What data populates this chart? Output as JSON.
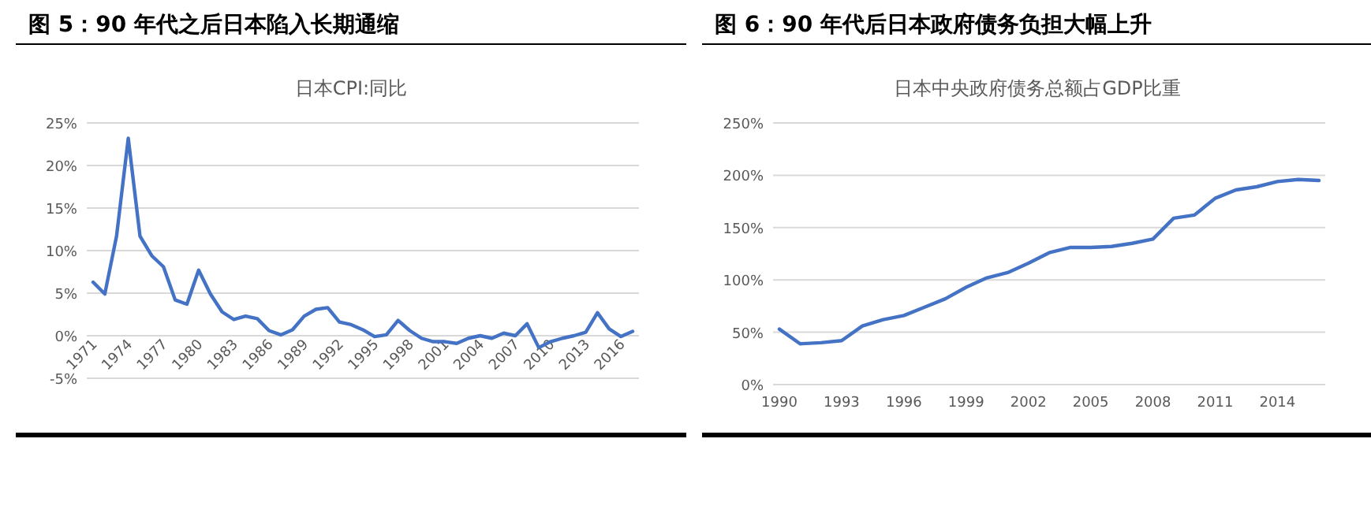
{
  "chart_data": [
    {
      "type": "line",
      "title": "图 5：90 年代之后日本陷入长期通缩",
      "subtitle": "日本CPI:同比",
      "categories": [
        "1971",
        null,
        null,
        "1974",
        null,
        null,
        "1977",
        null,
        null,
        "1980",
        null,
        null,
        "1983",
        null,
        null,
        "1986",
        null,
        null,
        "1989",
        null,
        null,
        "1992",
        null,
        null,
        "1995",
        null,
        null,
        "1998",
        null,
        null,
        "2001",
        null,
        null,
        "2004",
        null,
        null,
        "2007",
        null,
        null,
        "2010",
        null,
        null,
        "2013",
        null,
        null,
        "2016",
        null
      ],
      "series": [
        {
          "color": "#4472c4",
          "values": [
            6.3,
            4.9,
            11.7,
            23.2,
            11.7,
            9.4,
            8.1,
            4.2,
            3.7,
            7.7,
            4.9,
            2.8,
            1.9,
            2.3,
            2.0,
            0.6,
            0.1,
            0.7,
            2.3,
            3.1,
            3.3,
            1.6,
            1.3,
            0.7,
            -0.1,
            0.1,
            1.8,
            0.6,
            -0.3,
            -0.7,
            -0.7,
            -0.9,
            -0.3,
            0.0,
            -0.3,
            0.3,
            0.0,
            1.4,
            -1.4,
            -0.7,
            -0.3,
            0.0,
            0.4,
            2.7,
            0.8,
            -0.1,
            0.5
          ]
        }
      ],
      "ylim": [
        -5,
        25
      ],
      "yticks": [
        {
          "value": -5,
          "label": "-5%"
        },
        {
          "value": 0,
          "label": "0%"
        },
        {
          "value": 5,
          "label": "5%"
        },
        {
          "value": 10,
          "label": "10%"
        },
        {
          "value": 15,
          "label": "15%"
        },
        {
          "value": 20,
          "label": "20%"
        },
        {
          "value": 25,
          "label": "25%"
        }
      ],
      "grid": "y"
    },
    {
      "type": "line",
      "title": "图 6：90 年代后日本政府债务负担大幅上升",
      "subtitle": "日本中央政府债务总额占GDP比重",
      "categories": [
        "1990",
        null,
        null,
        "1993",
        null,
        null,
        "1996",
        null,
        null,
        "1999",
        null,
        null,
        "2002",
        null,
        null,
        "2005",
        null,
        null,
        "2008",
        null,
        null,
        "2011",
        null,
        null,
        "2014",
        null,
        null
      ],
      "series": [
        {
          "color": "#4472c4",
          "values": [
            53,
            39,
            40,
            42,
            56,
            62,
            66,
            74,
            82,
            93,
            102,
            107,
            116,
            126,
            131,
            131,
            132,
            135,
            139,
            159,
            162,
            178,
            186,
            189,
            194,
            196,
            195
          ]
        }
      ],
      "ylim": [
        0,
        250
      ],
      "yticks": [
        {
          "value": 0,
          "label": "0%"
        },
        {
          "value": 50,
          "label": "50%"
        },
        {
          "value": 100,
          "label": "100%"
        },
        {
          "value": 150,
          "label": "150%"
        },
        {
          "value": 200,
          "label": "200%"
        },
        {
          "value": 250,
          "label": "250%"
        }
      ],
      "grid": "y"
    }
  ]
}
